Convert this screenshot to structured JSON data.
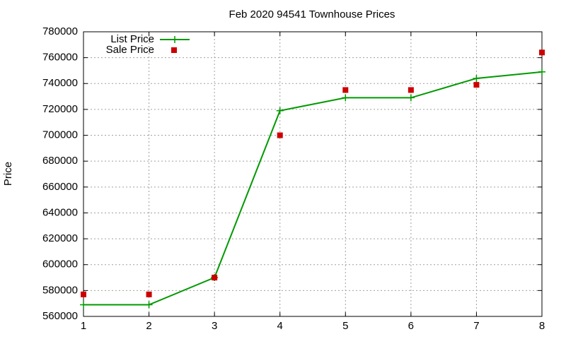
{
  "chart_data": {
    "type": "line",
    "title": "Feb 2020 94541 Townhouse Prices",
    "y_label": "Price",
    "x": [
      1,
      2,
      3,
      4,
      5,
      6,
      7,
      8
    ],
    "series": [
      {
        "name": "List Price",
        "color": "#009900",
        "style": "linespoints",
        "values": [
          569000,
          569000,
          590000,
          719000,
          729000,
          729000,
          744000,
          749000
        ]
      },
      {
        "name": "Sale Price",
        "color": "#cc0000",
        "style": "points",
        "values": [
          577000,
          577000,
          590000,
          700000,
          735000,
          735000,
          739000,
          764000
        ]
      }
    ],
    "xlim": [
      1,
      8
    ],
    "xticks": [
      1,
      2,
      3,
      4,
      5,
      6,
      7,
      8
    ],
    "ylim": [
      560000,
      780000
    ],
    "yticks": [
      560000,
      580000,
      600000,
      620000,
      640000,
      660000,
      680000,
      700000,
      720000,
      740000,
      760000,
      780000
    ],
    "grid": true,
    "legend": "top-left"
  }
}
